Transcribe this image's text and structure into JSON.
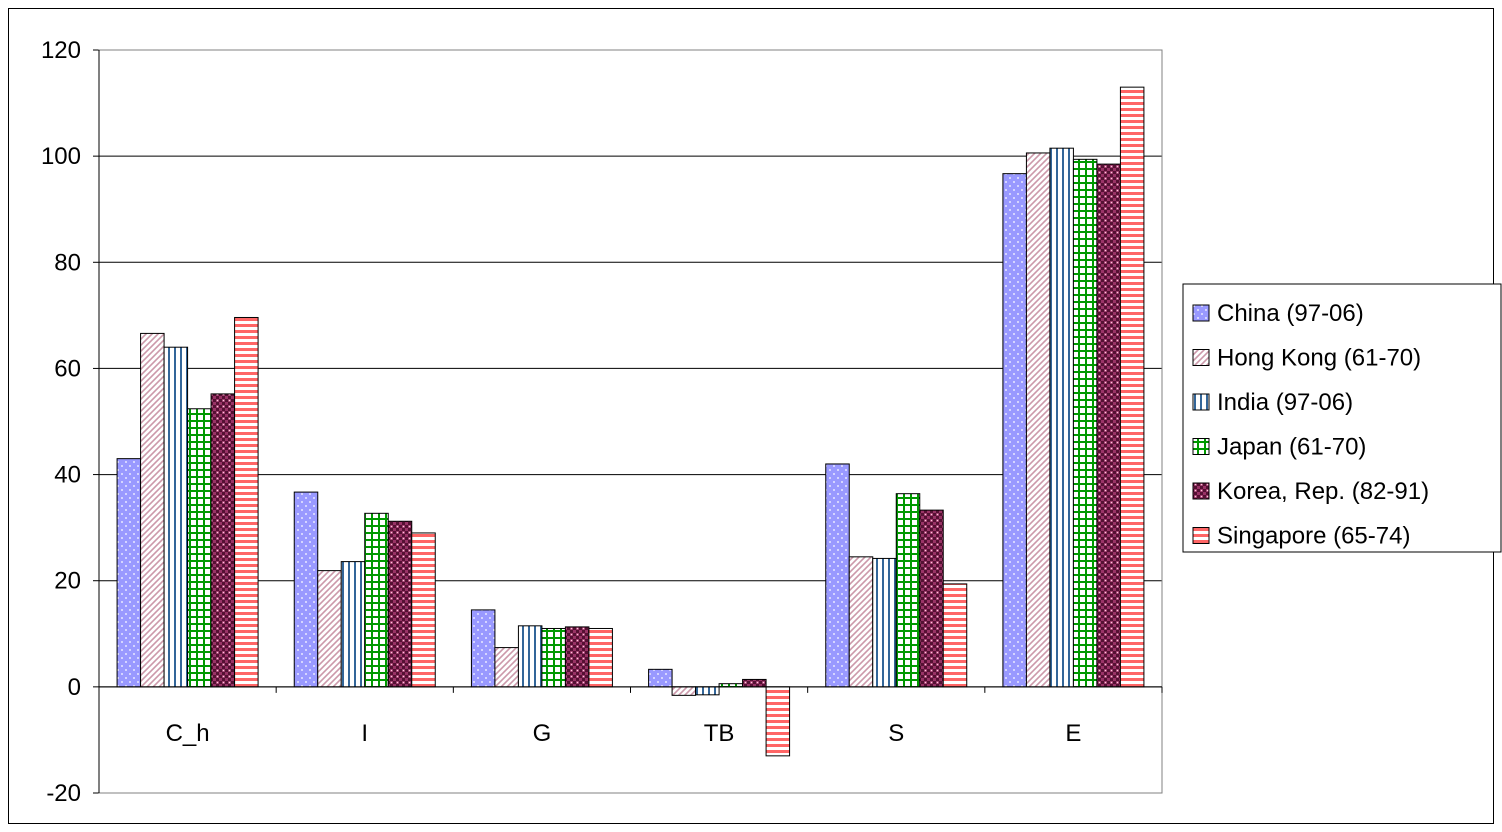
{
  "chart_data": {
    "type": "bar",
    "categories": [
      "C_h",
      "I",
      "G",
      "TB",
      "S",
      "E"
    ],
    "ylim": [
      -20,
      120
    ],
    "yticks": [
      -20,
      0,
      20,
      40,
      60,
      80,
      100,
      120
    ],
    "grid": true,
    "legend_position": "right",
    "series": [
      {
        "name": "China (97-06)",
        "values": [
          43,
          36.7,
          14.5,
          3.3,
          42,
          96.7
        ],
        "color": "#9999ff",
        "pattern": "dots"
      },
      {
        "name": "Hong Kong (61-70)",
        "values": [
          66.6,
          21.9,
          7.4,
          -1.6,
          24.5,
          100.6
        ],
        "color": "#cc99aa",
        "pattern": "diagonal"
      },
      {
        "name": "India (97-06)",
        "values": [
          64,
          23.6,
          11.5,
          -1.5,
          24.2,
          101.5
        ],
        "color": "#336699",
        "pattern": "vertical"
      },
      {
        "name": "Japan (61-70)",
        "values": [
          52.4,
          32.7,
          11,
          0.6,
          36.4,
          99.4
        ],
        "color": "#009900",
        "pattern": "grid"
      },
      {
        "name": "Korea, Rep. (82-91)",
        "values": [
          55.2,
          31.2,
          11.3,
          1.4,
          33.3,
          98.5
        ],
        "color": "#993366",
        "pattern": "checker"
      },
      {
        "name": "Singapore (65-74)",
        "values": [
          69.6,
          29,
          11,
          -13,
          19.4,
          113
        ],
        "color": "#ff6666",
        "pattern": "horizontal"
      }
    ]
  }
}
